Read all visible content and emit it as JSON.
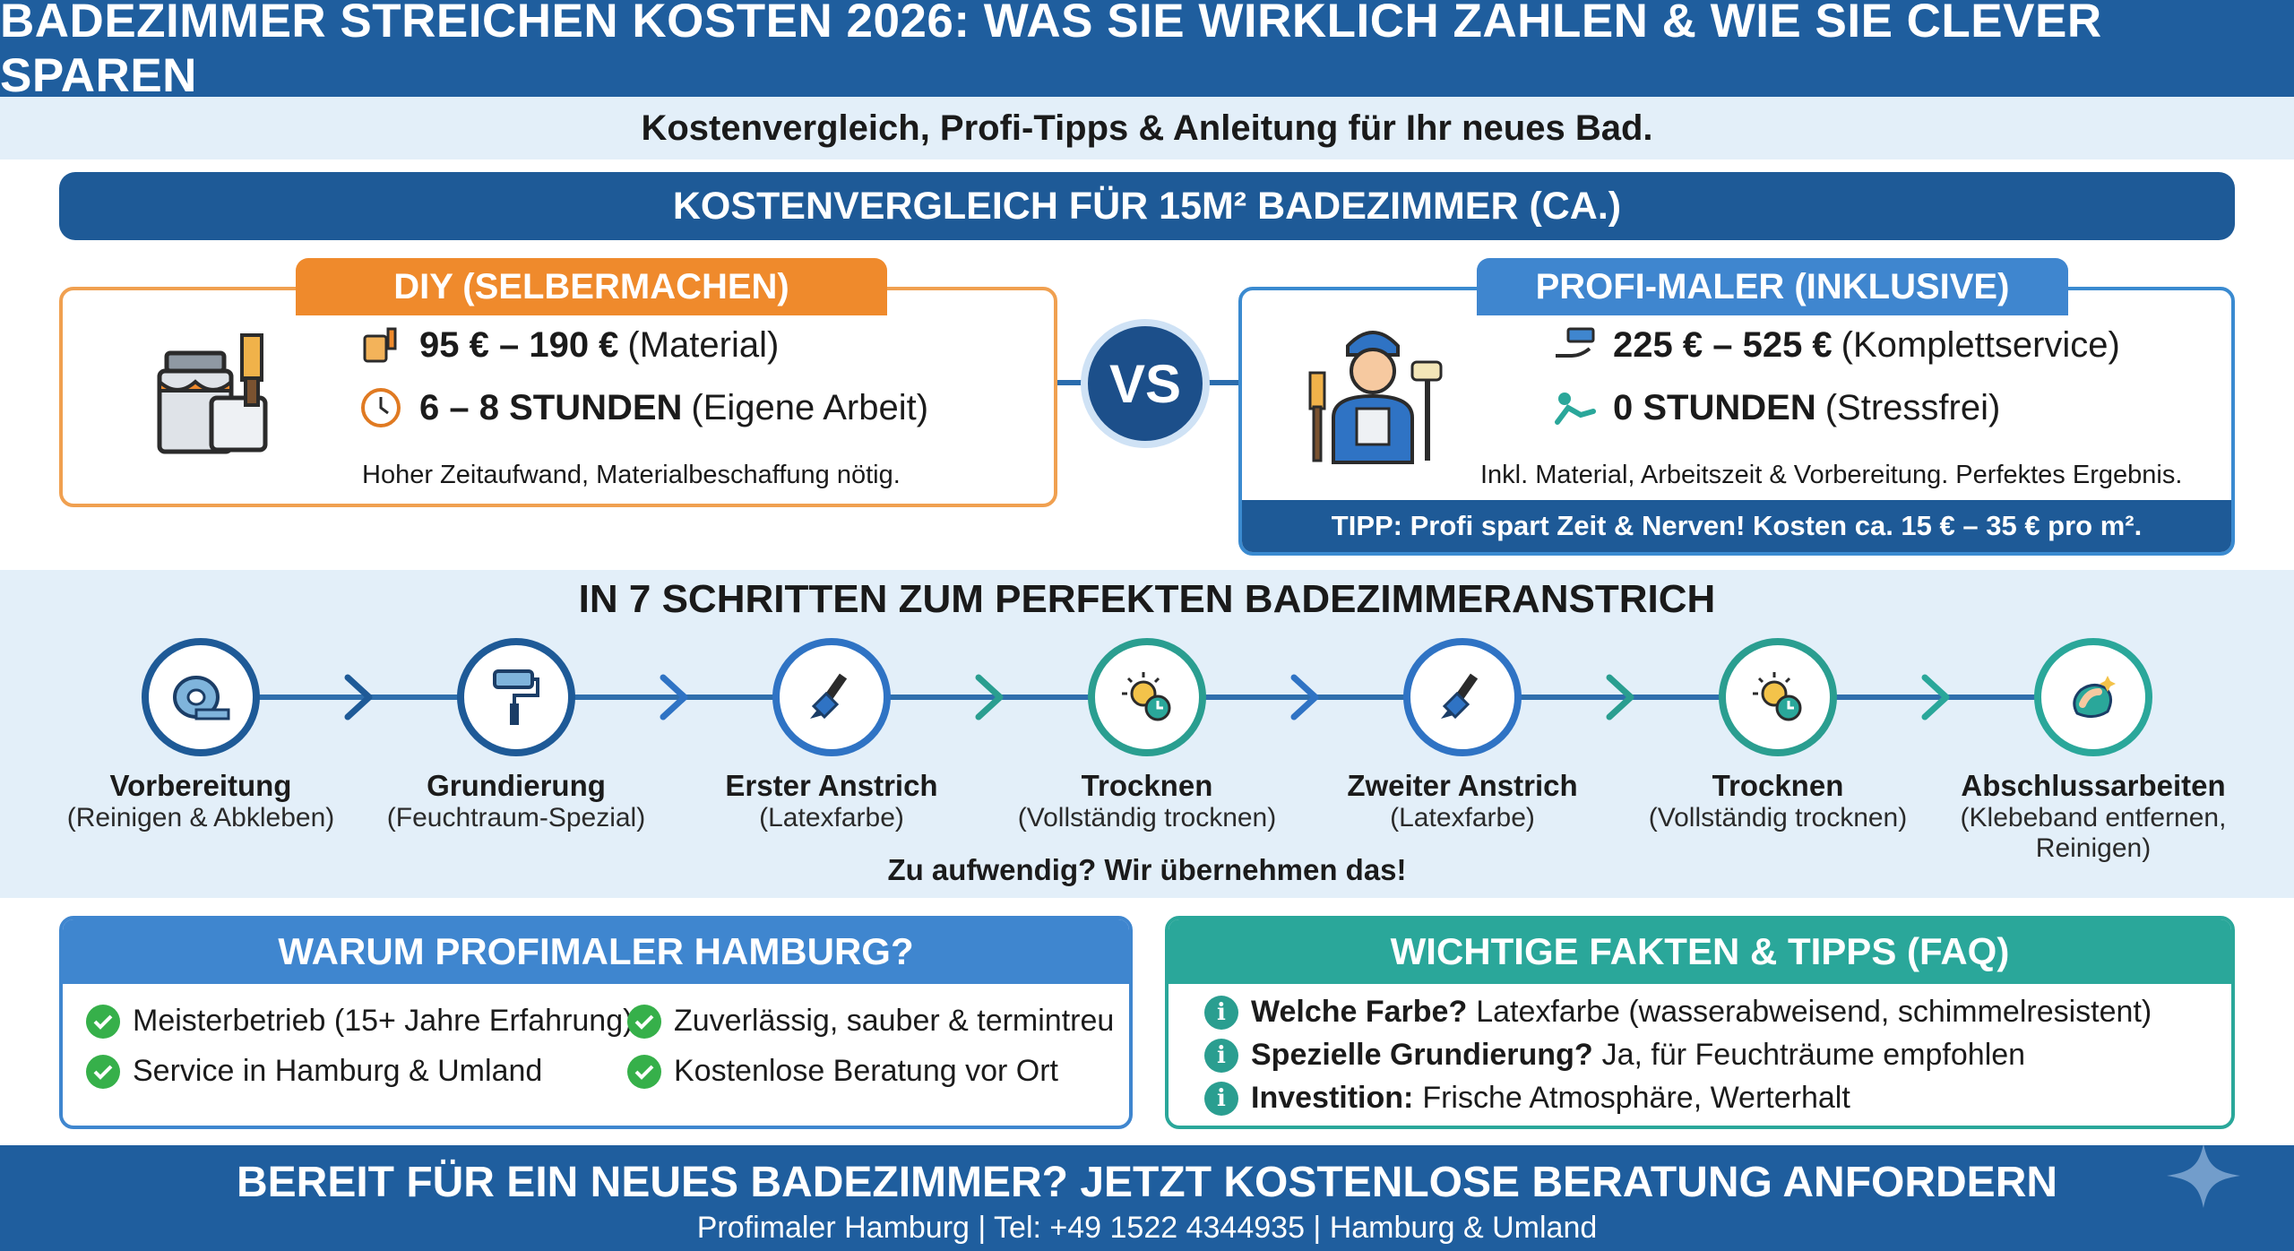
{
  "header": {
    "title": "BADEZIMMER STREICHEN KOSTEN 2026: WAS SIE WIRKLICH ZAHLEN & WIE SIE CLEVER SPAREN"
  },
  "subtitle": "Kostenvergleich, Profi-Tipps & Anleitung für Ihr neues Bad.",
  "comparison": {
    "title": "KOSTENVERGLEICH FÜR 15M² BADEZIMMER (CA.)",
    "vs": "VS",
    "diy": {
      "tab": "DIY (SELBERMACHEN)",
      "cost_bold": "95 € – 190 €",
      "cost_note": "(Material)",
      "time_bold": "6 – 8 STUNDEN",
      "time_note": "(Eigene Arbeit)",
      "note": "Hoher Zeitaufwand, Materialbeschaffung nötig."
    },
    "pro": {
      "tab": "PROFI-MALER (INKLUSIVE)",
      "cost_bold": "225 € – 525 €",
      "cost_note": "(Komplettservice)",
      "time_bold": "0 STUNDEN",
      "time_note": "(Stressfrei)",
      "note": "Inkl. Material, Arbeitszeit & Vorbereitung. Perfektes Ergebnis.",
      "tip": "TIPP: Profi spart Zeit & Nerven! Kosten ca. 15 € – 35 € pro m²."
    }
  },
  "steps": {
    "title": "IN 7 SCHRITTEN ZUM PERFEKTEN BADEZIMMERANSTRICH",
    "items": [
      {
        "title": "Vorbereitung",
        "sub": "(Reinigen & Abkleben)",
        "icon": "tape-icon"
      },
      {
        "title": "Grundierung",
        "sub": "(Feuchtraum-Spezial)",
        "icon": "paint-roller-icon"
      },
      {
        "title": "Erster Anstrich",
        "sub": "(Latexfarbe)",
        "icon": "paint-brush-icon"
      },
      {
        "title": "Trocknen",
        "sub": "(Vollständig trocknen)",
        "icon": "sun-clock-icon"
      },
      {
        "title": "Zweiter Anstrich",
        "sub": "(Latexfarbe)",
        "icon": "paint-brush-icon"
      },
      {
        "title": "Trocknen",
        "sub": "(Vollständig trocknen)",
        "icon": "sun-clock-icon"
      },
      {
        "title": "Abschlussarbeiten",
        "sub": "(Klebeband entfernen, Reinigen)",
        "icon": "cleaning-hand-icon"
      }
    ],
    "footer": "Zu aufwendig? Wir übernehmen das!"
  },
  "why": {
    "title": "WARUM PROFIMALER HAMBURG?",
    "items": [
      "Meisterbetrieb (15+ Jahre Erfahrung)",
      "Zuverlässig, sauber & termintreu",
      "Service in Hamburg & Umland",
      "Kostenlose Beratung vor Ort"
    ]
  },
  "faq": {
    "title": "WICHTIGE FAKTEN & TIPPS (FAQ)",
    "items": [
      {
        "q": "Welche Farbe?",
        "a": "Latexfarbe (wasserabweisend, schimmelresistent)"
      },
      {
        "q": "Spezielle Grundierung?",
        "a": "Ja, für Feuchträume empfohlen"
      },
      {
        "q": "Investition:",
        "a": "Frische Atmosphäre, Werterhalt"
      }
    ]
  },
  "footer": {
    "cta": "BEREIT FÜR EIN NEUES BADEZIMMER? JETZT KOSTENLOSE BERATUNG ANFORDERN",
    "contact": "Profimaler Hamburg | Tel: +49 1522 4344935 | Hamburg & Umland"
  },
  "colors": {
    "navy": "#1f5e9e",
    "orange": "#ef8a2c",
    "blue": "#3f86cf",
    "teal": "#2aa79a",
    "green": "#36b04a"
  }
}
